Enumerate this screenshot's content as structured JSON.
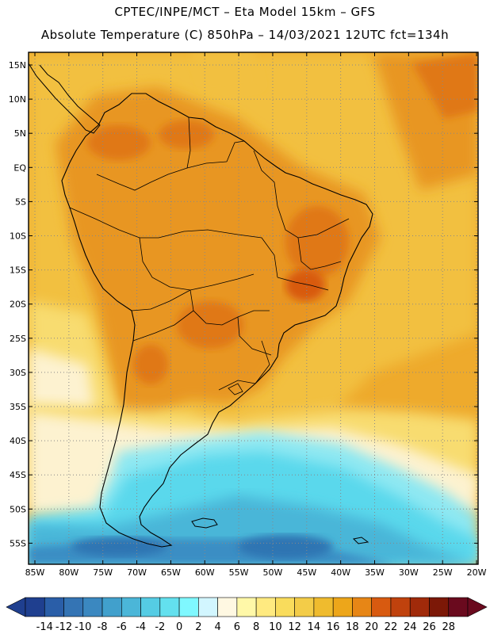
{
  "header": {
    "line1": "CPTEC/INPE/MCT –  Eta Model 15km – GFS",
    "line2": "Absolute Temperature (C) 850hPa – 14/03/2021 12UTC fct=134h"
  },
  "axes": {
    "lat_labels": [
      "15N",
      "10N",
      "5N",
      "EQ",
      "5S",
      "10S",
      "15S",
      "20S",
      "25S",
      "30S",
      "35S",
      "40S",
      "45S",
      "50S",
      "55S"
    ],
    "lon_labels": [
      "85W",
      "80W",
      "75W",
      "70W",
      "65W",
      "60W",
      "55W",
      "50W",
      "45W",
      "40W",
      "35W",
      "30W",
      "25W",
      "20W"
    ]
  },
  "colorbar": {
    "ticks": [
      "-14",
      "-12",
      "-10",
      "-8",
      "-6",
      "-4",
      "-2",
      "0",
      "2",
      "4",
      "6",
      "8",
      "10",
      "12",
      "14",
      "16",
      "18",
      "20",
      "22",
      "24",
      "26",
      "28"
    ],
    "colors": [
      "#1f3f8f",
      "#2a5ea8",
      "#3474b4",
      "#3b88c0",
      "#41a0cc",
      "#4bb6d8",
      "#55cce4",
      "#63e0ee",
      "#7ff8ff",
      "#d2f6ff",
      "#fff8e2",
      "#fff8a8",
      "#ffea80",
      "#f9dc5c",
      "#f3cc48",
      "#efbb2e",
      "#eda61a",
      "#e78616",
      "#d85a10",
      "#c0420d",
      "#a02a0a",
      "#7c1807",
      "#6a0a1e"
    ]
  },
  "map_colors": {
    "very_warm": "#e07818",
    "warm": "#e89624",
    "mild_warm": "#eeaa2c",
    "mild": "#f2c040",
    "cool_yellow": "#f8dc70",
    "pale": "#fdf2d0",
    "cyan_light": "#8ee8f2",
    "cyan": "#5ad8ec",
    "blue_light": "#48b6d8",
    "blue": "#3b8ec4",
    "blue_dark": "#2f74b2",
    "land_outline": "#000000",
    "grid": "#888888"
  }
}
